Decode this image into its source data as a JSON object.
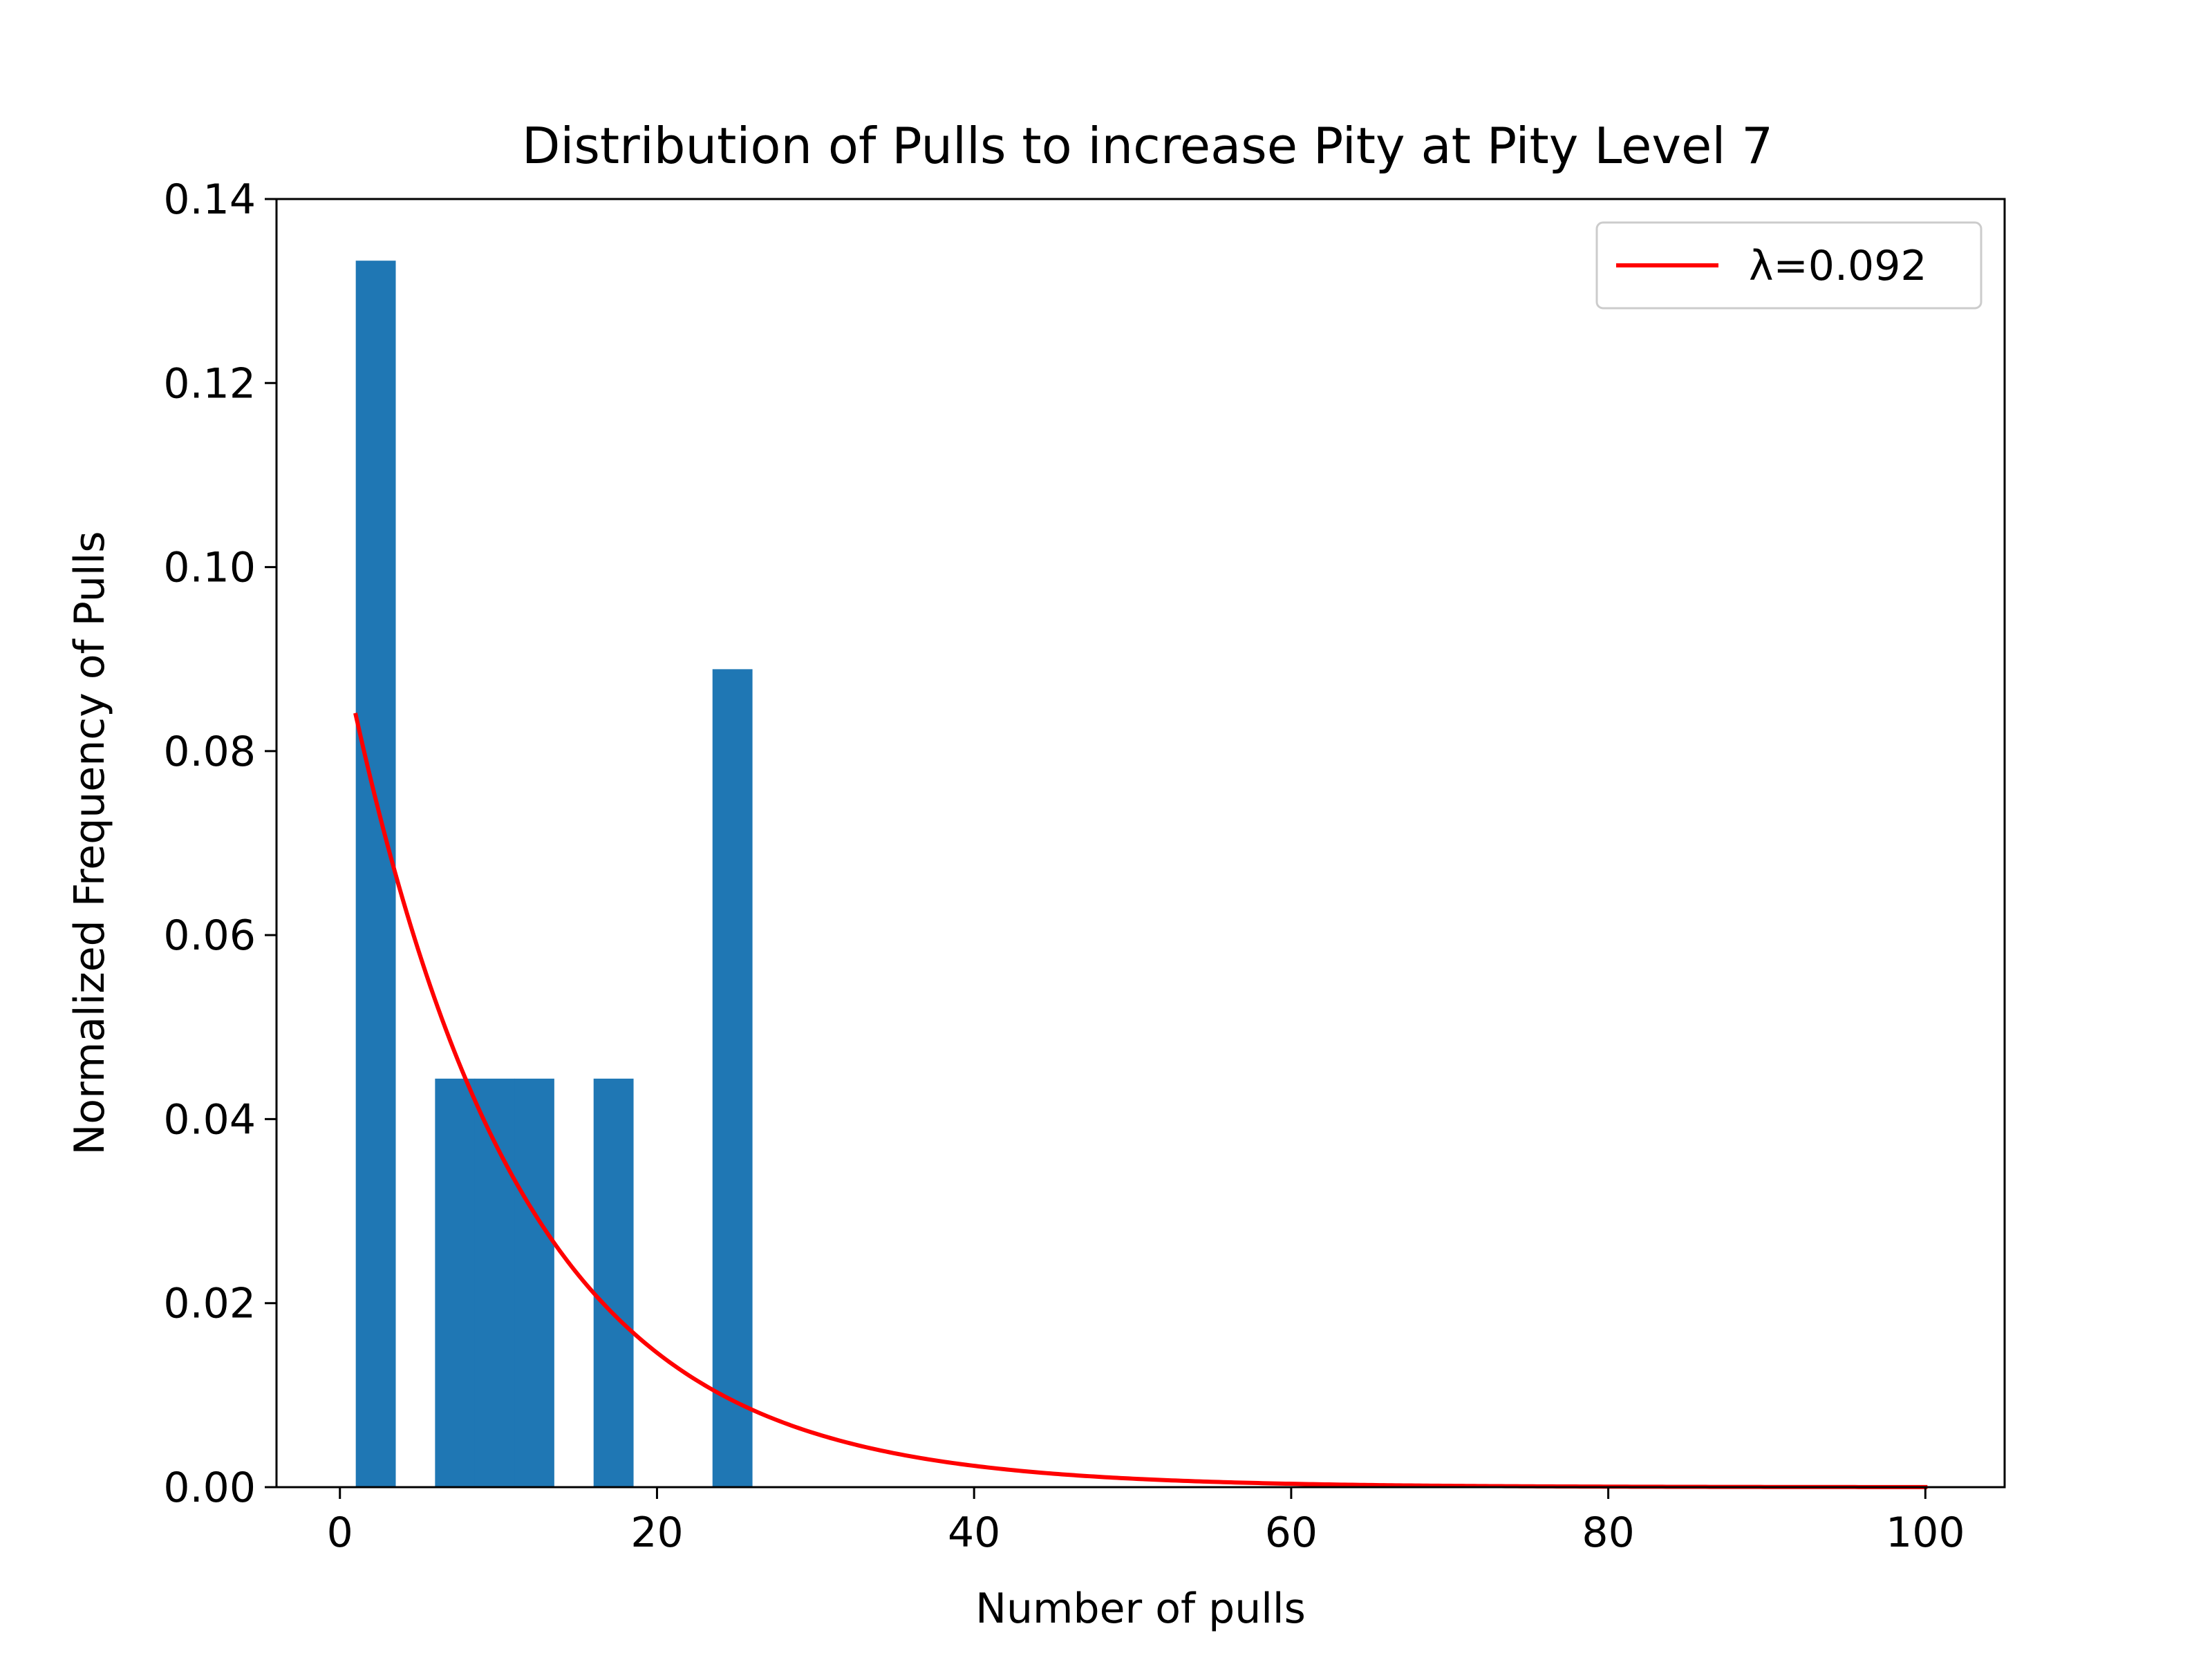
{
  "chart_data": {
    "type": "bar",
    "title": "Distribution of Pulls to increase Pity at Pity Level 7",
    "xlabel": "Number of pulls",
    "ylabel": "Normalized Frequency of Pulls",
    "xlim": [
      -4.0,
      105.0
    ],
    "ylim": [
      0.0,
      0.14
    ],
    "xticks": [
      0,
      20,
      40,
      60,
      80,
      100
    ],
    "xtick_labels": [
      "0",
      "20",
      "40",
      "60",
      "80",
      "100"
    ],
    "yticks": [
      0.0,
      0.02,
      0.04,
      0.06,
      0.08,
      0.1,
      0.12,
      0.14
    ],
    "ytick_labels": [
      "0.00",
      "0.02",
      "0.04",
      "0.06",
      "0.08",
      "0.10",
      "0.12",
      "0.14"
    ],
    "grid": false,
    "legend_position": "top-right",
    "bar_color": "#1f77b4",
    "bars": [
      {
        "x0": 1.0,
        "x1": 3.5,
        "value": 0.1333
      },
      {
        "x0": 6.0,
        "x1": 8.5,
        "value": 0.0444
      },
      {
        "x0": 8.5,
        "x1": 11.0,
        "value": 0.0444
      },
      {
        "x0": 11.0,
        "x1": 13.5,
        "value": 0.0444
      },
      {
        "x0": 16.0,
        "x1": 18.5,
        "value": 0.0444
      },
      {
        "x0": 23.5,
        "x1": 26.0,
        "value": 0.0889
      }
    ],
    "series": [
      {
        "name": "λ=0.092",
        "type": "line",
        "color": "#ff0000",
        "lambda": 0.092,
        "function": "exponential_pdf",
        "x_range": [
          1,
          100
        ]
      }
    ]
  }
}
